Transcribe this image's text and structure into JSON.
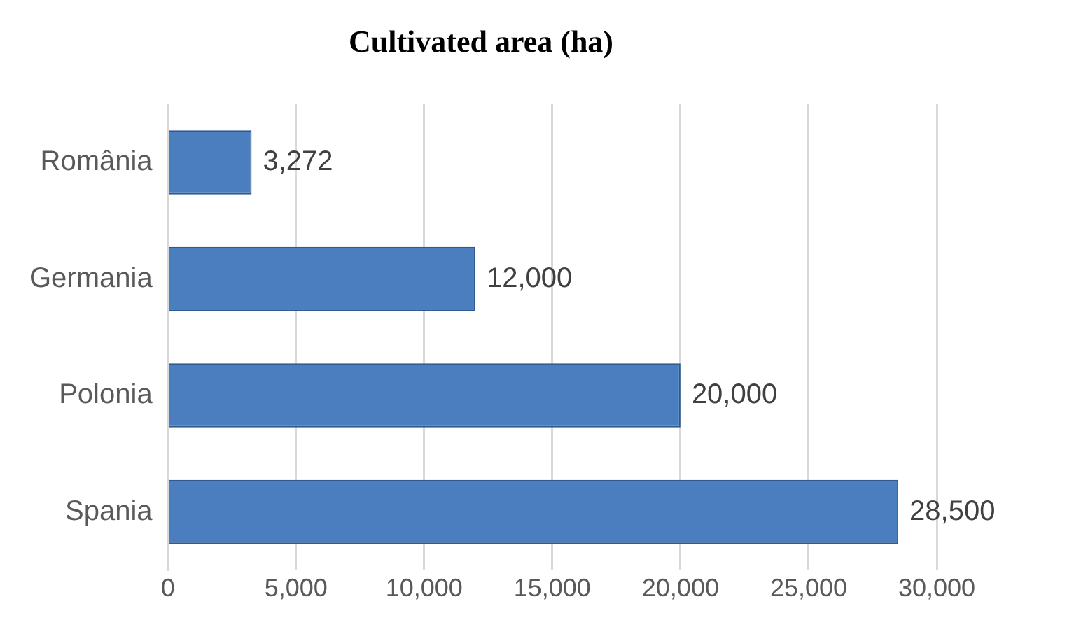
{
  "chart_data": {
    "type": "bar",
    "orientation": "horizontal",
    "title": "Cultivated area (ha)",
    "categories": [
      "România",
      "Germania",
      "Polonia",
      "Spania"
    ],
    "values": [
      3272,
      12000,
      20000,
      28500
    ],
    "value_labels": [
      "3,272",
      "12,000",
      "20,000",
      "28,500"
    ],
    "color": "#4a7ebf",
    "xlim": [
      0,
      30000
    ],
    "xticks": [
      0,
      {
        "value": 5000,
        "label": "5,000"
      },
      {
        "value": 10000,
        "label": "10,000"
      },
      {
        "value": 15000,
        "label": "15,000"
      },
      {
        "value": 20000,
        "label": "20,000"
      },
      {
        "value": 25000,
        "label": "25,000"
      },
      {
        "value": 30000,
        "label": "30,000"
      }
    ],
    "grid": true,
    "legend": false
  }
}
